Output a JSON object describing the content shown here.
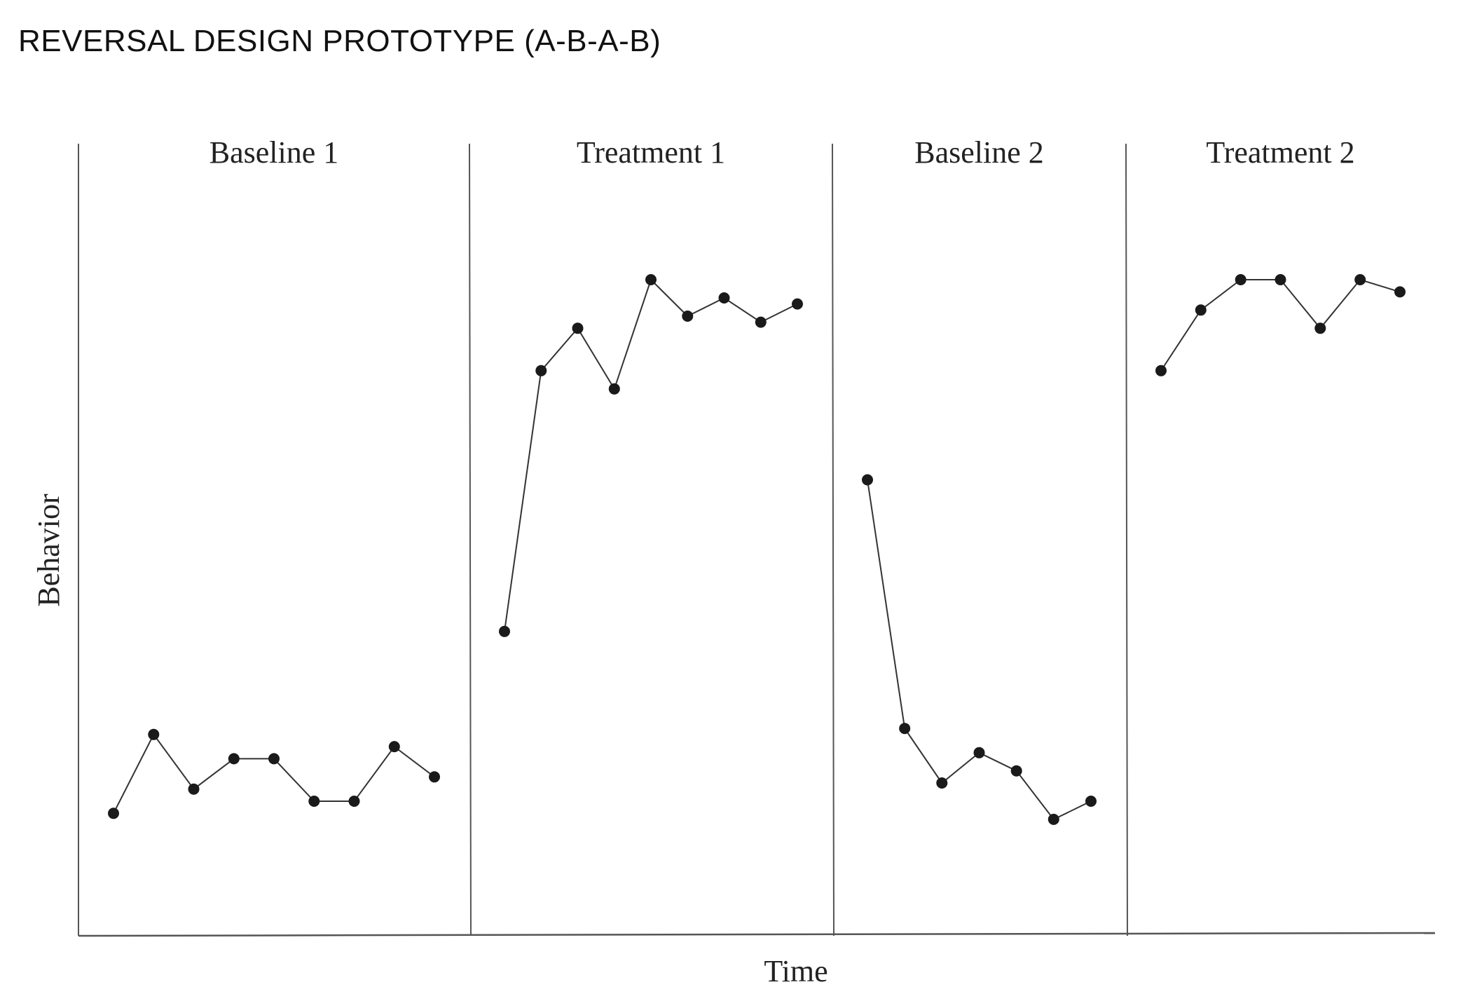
{
  "title": "REVERSAL DESIGN PROTOTYPE  (A-B-A-B)",
  "colors": {
    "ink": "#1a1a1a",
    "line": "#333333",
    "axis": "#555555"
  },
  "chart_data": {
    "type": "line",
    "title": "REVERSAL DESIGN PROTOTYPE  (A-B-A-B)",
    "xlabel": "Time",
    "ylabel": "Behavior",
    "ylim": [
      0,
      100
    ],
    "grid": false,
    "legend": "none",
    "phases": [
      {
        "label": "Baseline 1",
        "points": [
          15,
          28,
          19,
          24,
          24,
          17,
          17,
          26,
          21
        ]
      },
      {
        "label": "Treatment 1",
        "points": [
          45,
          88,
          95,
          85,
          103,
          97,
          100,
          96,
          99
        ]
      },
      {
        "label": "Baseline 2",
        "points": [
          70,
          29,
          20,
          25,
          22,
          14,
          17
        ]
      },
      {
        "label": "Treatment 2",
        "points": [
          88,
          98,
          103,
          103,
          95,
          103,
          101
        ]
      }
    ]
  }
}
